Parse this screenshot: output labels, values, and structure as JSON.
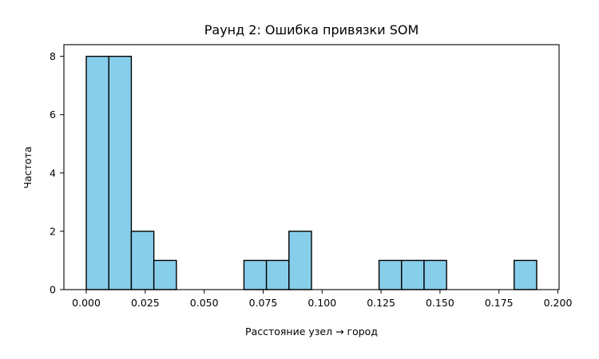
{
  "chart_data": {
    "type": "histogram",
    "title": "Раунд 2: Ошибка привязки SOM",
    "xlabel": "Расстояние узел → город",
    "ylabel": "Частота",
    "xlim": [
      -0.0095,
      0.2005
    ],
    "ylim": [
      0,
      8.4
    ],
    "xticks": [
      "0.000",
      "0.025",
      "0.050",
      "0.075",
      "0.100",
      "0.125",
      "0.150",
      "0.175",
      "0.200"
    ],
    "yticks": [
      "0",
      "2",
      "4",
      "6",
      "8"
    ],
    "bin_edges": [
      0.0,
      0.00955,
      0.0191,
      0.02865,
      0.0382,
      0.04775,
      0.0573,
      0.06685,
      0.0764,
      0.08595,
      0.0955,
      0.10505,
      0.1146,
      0.12415,
      0.1337,
      0.14325,
      0.1528,
      0.16235,
      0.1719,
      0.18145,
      0.191
    ],
    "counts": [
      8,
      8,
      2,
      1,
      0,
      0,
      0,
      1,
      1,
      2,
      0,
      0,
      0,
      1,
      1,
      1,
      0,
      0,
      0,
      1
    ],
    "bar_color": "#87ceeb",
    "edge_color": "#000000",
    "grid": false
  }
}
